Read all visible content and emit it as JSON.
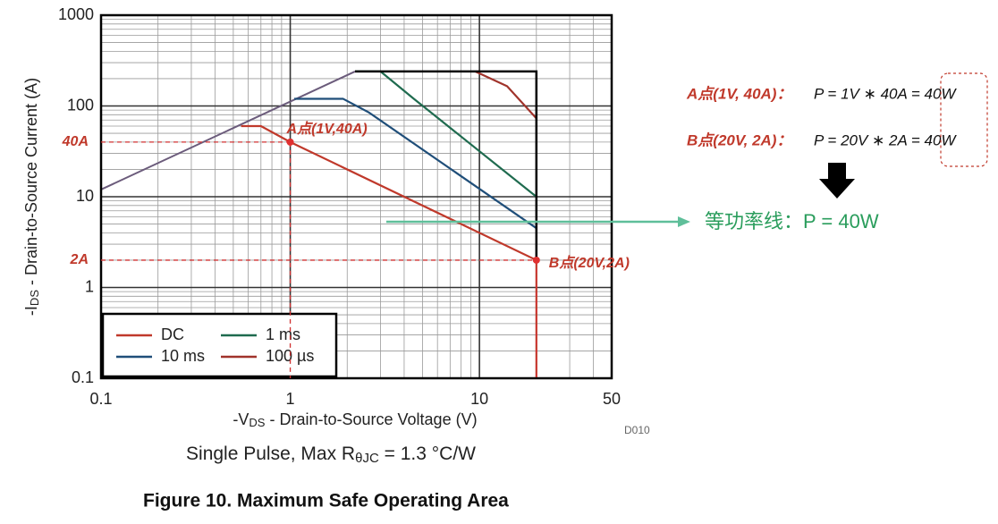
{
  "chart_data": {
    "type": "line",
    "xlog": true,
    "ylog": true,
    "grid": true,
    "xlim": [
      0.1,
      50
    ],
    "ylim": [
      0.1,
      1000
    ],
    "xticks": [
      0.1,
      1,
      10,
      50
    ],
    "yticks": [
      0.1,
      1,
      10,
      100,
      1000
    ],
    "x_label": {
      "prefix": "-V",
      "sub": "DS",
      "rest": " - Drain-to-Source Voltage (V)"
    },
    "y_label": {
      "prefix": "-I",
      "sub": "DS",
      "rest": " - Drain-to-Source Current (A)"
    },
    "legend": "lower left",
    "series": [
      {
        "name": "DC",
        "color": "#c0392b",
        "x": [
          0.55,
          0.7,
          1,
          20,
          20
        ],
        "values": [
          60,
          60,
          40,
          2,
          0.1
        ]
      },
      {
        "name": "1 ms",
        "color": "#1f6b4f",
        "x": [
          2.2,
          3.0,
          4.5,
          20
        ],
        "values": [
          240,
          240,
          120,
          10
        ]
      },
      {
        "name": "10 ms",
        "color": "#1f4e79",
        "x": [
          1.05,
          1.9,
          2.6,
          20
        ],
        "values": [
          120,
          120,
          85,
          4.5
        ]
      },
      {
        "name": "100 µs",
        "color": "#a0332b",
        "x": [
          9.5,
          14,
          20
        ],
        "values": [
          240,
          165,
          73
        ]
      }
    ],
    "limit_line": {
      "color": "#6b5b7b",
      "x": [
        0.1,
        2.2
      ],
      "values": [
        12,
        240
      ]
    },
    "boundary": {
      "color": "#000000",
      "x": [
        2.2,
        20,
        20
      ],
      "values": [
        240,
        240,
        2
      ]
    },
    "points": [
      {
        "label": "A点(1V,40A)",
        "axis_label": "40A",
        "x": 1,
        "y": 40
      },
      {
        "label": "B点(20V,2A)",
        "axis_label": "2A",
        "x": 20,
        "y": 2
      }
    ],
    "code": "D010",
    "note": {
      "prefix": "Single Pulse, Max R",
      "sub": "θJC",
      "rest": " = 1.3 °C/W"
    },
    "caption": "Figure 10. Maximum Safe Operating Area",
    "formulas": [
      {
        "point": "A点(1V, 40A)：",
        "expr": "P = 1V ∗ 40A = 40W"
      },
      {
        "point": "B点(20V, 2A)：",
        "expr": "P = 20V ∗ 2A = 40W"
      }
    ],
    "power_line_note": "等功率线：P = 40W"
  }
}
